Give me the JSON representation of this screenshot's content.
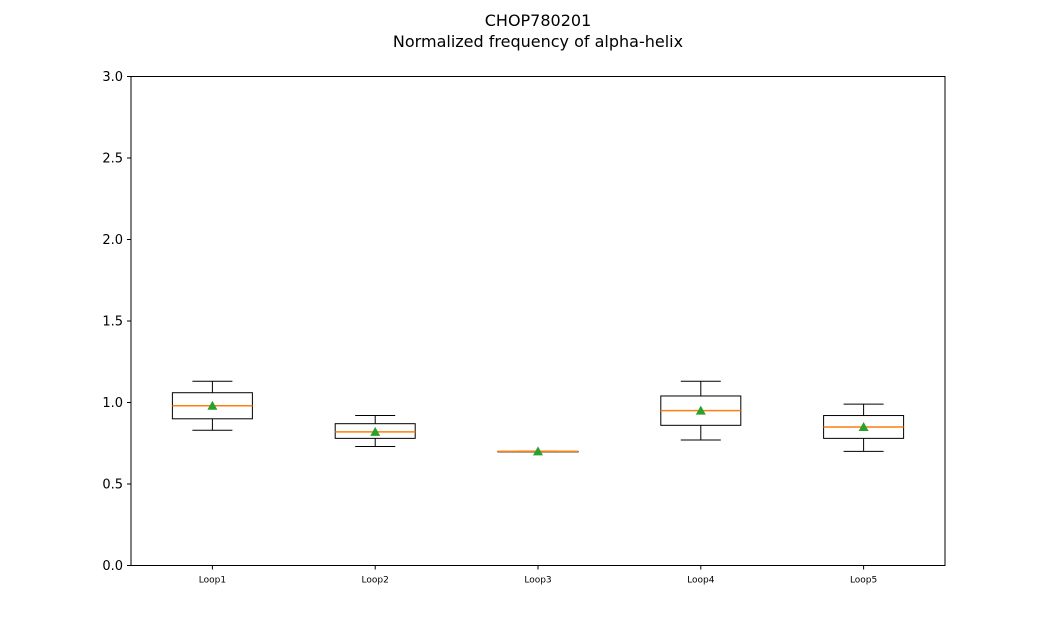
{
  "chart_data": {
    "type": "box",
    "title": "CHOP780201",
    "subtitle": "Normalized frequency of alpha-helix",
    "xlabel": "",
    "ylabel": "",
    "ylim": [
      0,
      3
    ],
    "yticks": [
      "0.0",
      "0.5",
      "1.0",
      "1.5",
      "2.0",
      "2.5",
      "3.0"
    ],
    "ytick_values": [
      0,
      0.5,
      1.0,
      1.5,
      2.0,
      2.5,
      3.0
    ],
    "categories": [
      "Loop1",
      "Loop2",
      "Loop3",
      "Loop4",
      "Loop5"
    ],
    "boxes": [
      {
        "whisker_low": 0.83,
        "q1": 0.9,
        "median": 0.98,
        "q3": 1.06,
        "whisker_high": 1.13,
        "mean": 0.98
      },
      {
        "whisker_low": 0.73,
        "q1": 0.78,
        "median": 0.82,
        "q3": 0.87,
        "whisker_high": 0.92,
        "mean": 0.82
      },
      {
        "whisker_low": 0.7,
        "q1": 0.7,
        "median": 0.7,
        "q3": 0.7,
        "whisker_high": 0.7,
        "mean": 0.7
      },
      {
        "whisker_low": 0.77,
        "q1": 0.86,
        "median": 0.95,
        "q3": 1.04,
        "whisker_high": 1.13,
        "mean": 0.95
      },
      {
        "whisker_low": 0.7,
        "q1": 0.78,
        "median": 0.85,
        "q3": 0.92,
        "whisker_high": 0.99,
        "mean": 0.85
      }
    ],
    "grid": false,
    "colors": {
      "box": "#000000",
      "median": "#ff7f0e",
      "mean": "#2ca02c"
    }
  }
}
